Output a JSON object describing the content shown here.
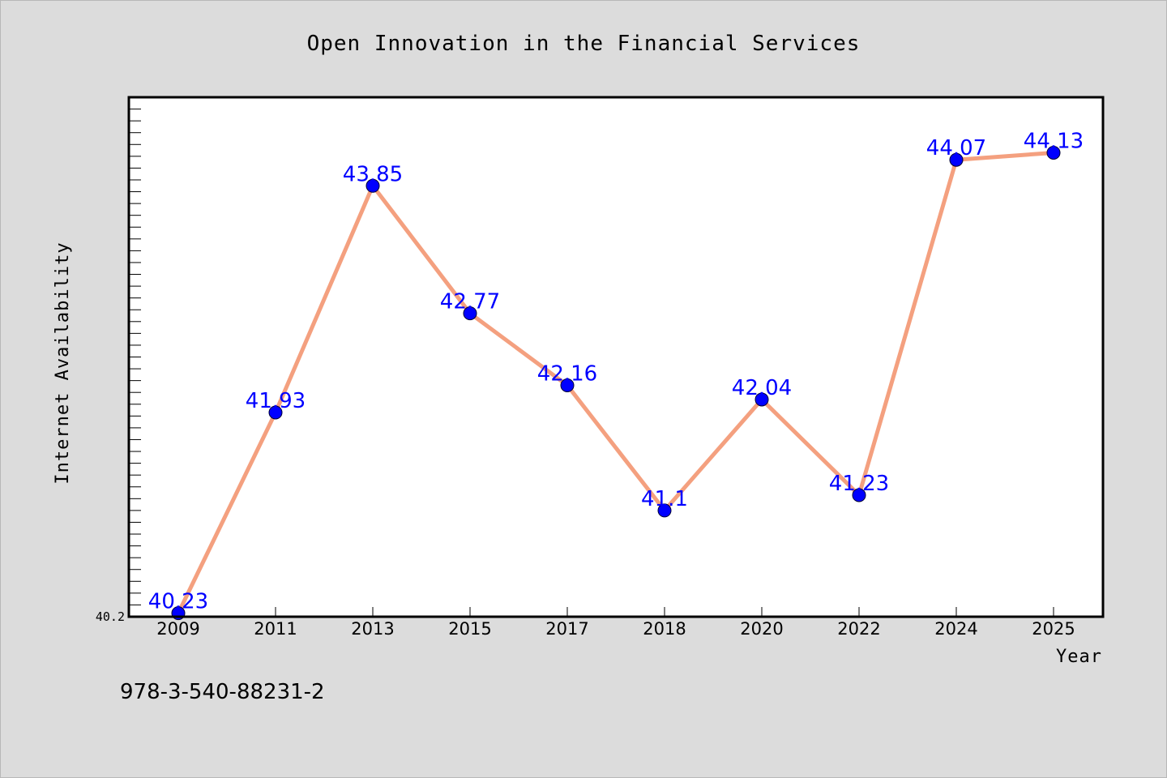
{
  "chart_data": {
    "type": "line",
    "title": "Open Innovation in the Financial Services",
    "xlabel": "Year",
    "ylabel": "Internet Availability",
    "categories": [
      "2009",
      "2011",
      "2013",
      "2015",
      "2017",
      "2018",
      "2020",
      "2022",
      "2024",
      "2025"
    ],
    "series": [
      {
        "values": [
          40.23,
          41.93,
          43.85,
          42.77,
          42.16,
          41.1,
          42.04,
          41.23,
          44.07,
          44.13
        ],
        "data_labels": [
          "40.23",
          "41.93",
          "43.85",
          "42.77",
          "42.16",
          "41.1",
          "42.04",
          "41.23",
          "44.07",
          "44.13"
        ],
        "line_color": "#f4a07f",
        "marker_color": "#0000ff"
      }
    ],
    "ylim": [
      40.2,
      44.6
    ],
    "y_tick_labels": [
      "40.2"
    ],
    "grid": false,
    "legend": "none"
  },
  "footnote": "978-3-540-88231-2",
  "colors": {
    "background": "#dcdcdc",
    "plot_background": "#ffffff",
    "label_text": "#0000ff"
  }
}
